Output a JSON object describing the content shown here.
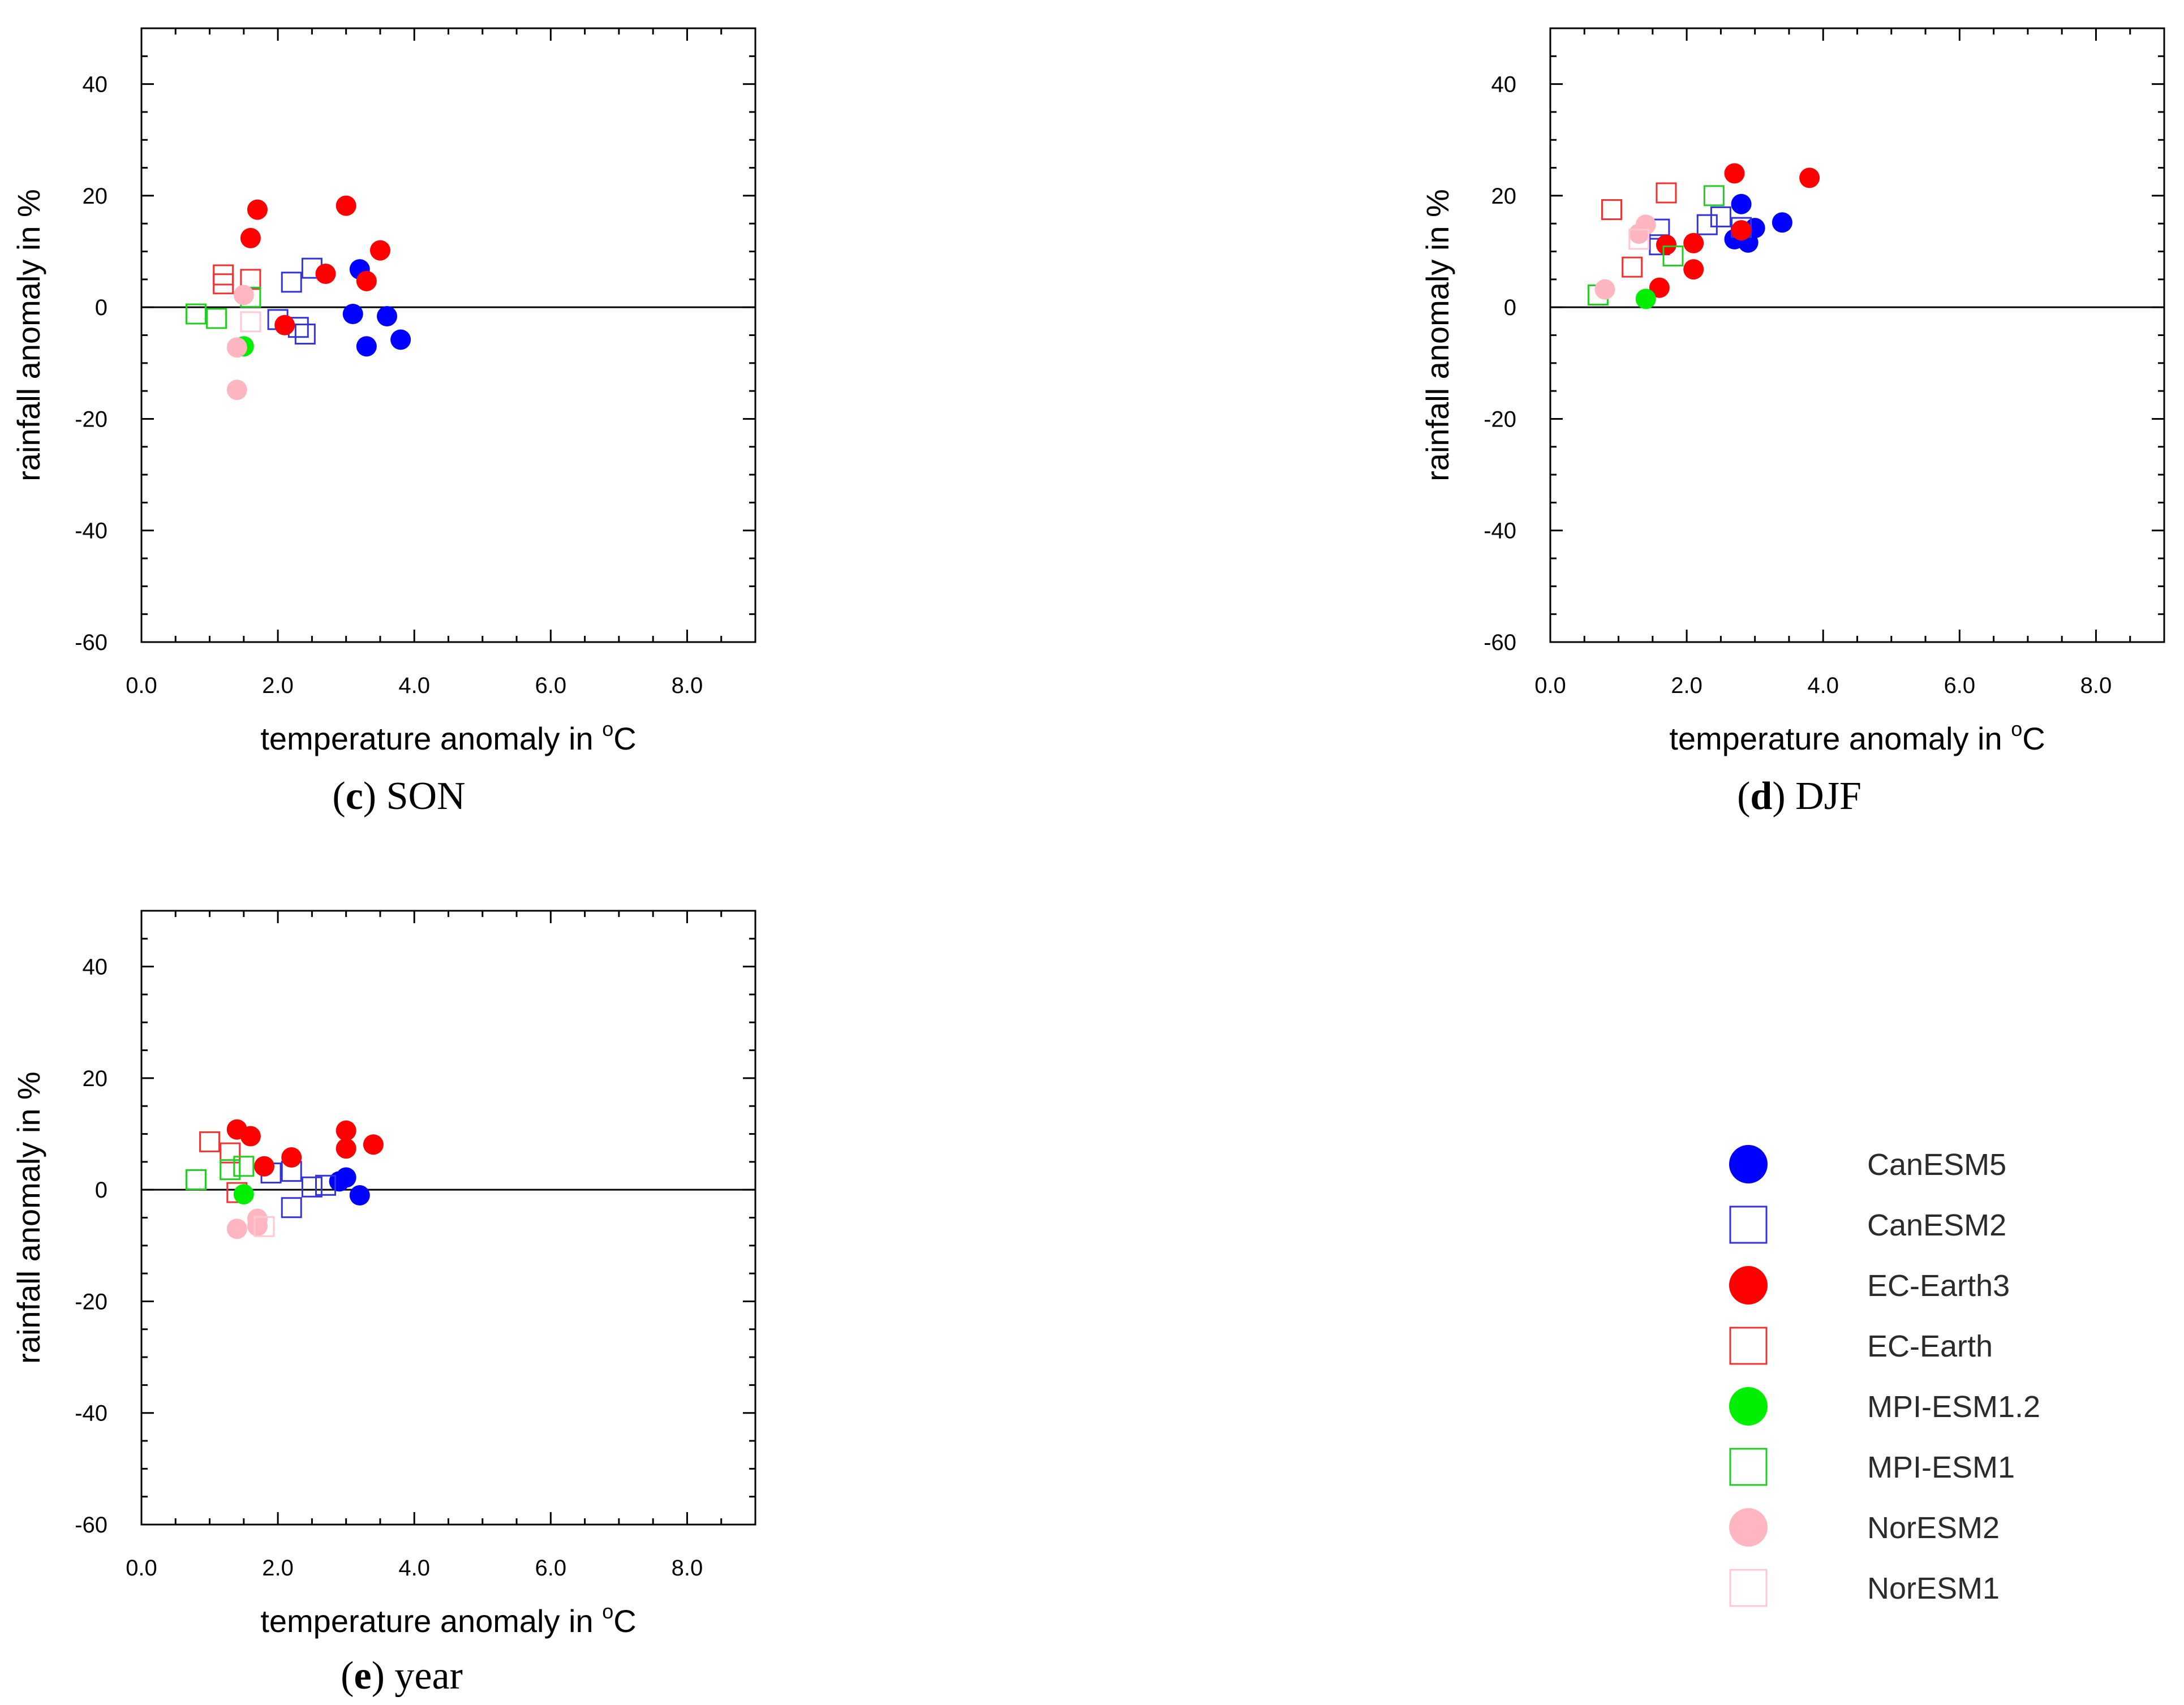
{
  "series_styles": [
    {
      "key": "CanESM5",
      "label": "CanESM5",
      "marker": "filled-circle",
      "color": "#0000ff"
    },
    {
      "key": "CanESM2",
      "label": "CanESM2",
      "marker": "open-square",
      "color": "#3333dd"
    },
    {
      "key": "EC-Earth3",
      "label": "EC-Earth3",
      "marker": "filled-circle",
      "color": "#ff0000"
    },
    {
      "key": "EC-Earth",
      "label": "EC-Earth",
      "marker": "open-square",
      "color": "#ee3333"
    },
    {
      "key": "MPI-ESM1.2",
      "label": "MPI-ESM1.2",
      "marker": "filled-circle",
      "color": "#00ee00"
    },
    {
      "key": "MPI-ESM1",
      "label": "MPI-ESM1",
      "marker": "open-square",
      "color": "#22cc22"
    },
    {
      "key": "NorESM2",
      "label": "NorESM2",
      "marker": "filled-circle",
      "color": "#ffb6c1"
    },
    {
      "key": "NorESM1",
      "label": "NorESM1",
      "marker": "open-square",
      "color": "#ffc8d0"
    }
  ],
  "chart_data": [
    {
      "type": "scatter",
      "panel": "c",
      "caption_letter": "c",
      "caption_text": "SON",
      "xlabel": "temperature anomaly in ",
      "xlabel_degree": "o",
      "xlabel_unit": "C",
      "ylabel": "rainfall anomaly in %",
      "xlim": [
        0,
        9
      ],
      "ylim": [
        -60,
        50
      ],
      "xticks": [
        0,
        2,
        4,
        6,
        8
      ],
      "xtick_labels": [
        "0.0",
        "2.0",
        "4.0",
        "6.0",
        "8.0"
      ],
      "yticks": [
        -60,
        -40,
        -20,
        0,
        20,
        40
      ],
      "ytick_labels": [
        "-60",
        "-40",
        "-20",
        "0",
        "20",
        "40"
      ],
      "zero_line": true,
      "series": [
        {
          "name": "CanESM5",
          "points": [
            [
              3.2,
              6.8
            ],
            [
              3.1,
              -1.2
            ],
            [
              3.6,
              -1.6
            ],
            [
              3.3,
              -7.0
            ],
            [
              3.8,
              -5.8
            ]
          ]
        },
        {
          "name": "CanESM2",
          "points": [
            [
              2.2,
              4.5
            ],
            [
              2.5,
              7.0
            ],
            [
              2.0,
              -2.2
            ],
            [
              2.3,
              -3.6
            ],
            [
              2.4,
              -4.8
            ]
          ]
        },
        {
          "name": "EC-Earth3",
          "points": [
            [
              1.7,
              17.5
            ],
            [
              1.6,
              12.4
            ],
            [
              3.0,
              18.2
            ],
            [
              3.5,
              10.2
            ],
            [
              2.7,
              6.0
            ],
            [
              3.3,
              4.7
            ],
            [
              2.1,
              -3.2
            ]
          ]
        },
        {
          "name": "EC-Earth",
          "points": [
            [
              1.2,
              5.8
            ],
            [
              1.2,
              4.2
            ],
            [
              1.6,
              5.0
            ]
          ]
        },
        {
          "name": "MPI-ESM1.2",
          "points": [
            [
              1.5,
              -7.0
            ]
          ]
        },
        {
          "name": "MPI-ESM1",
          "points": [
            [
              0.8,
              -1.2
            ],
            [
              1.1,
              -2.0
            ],
            [
              1.6,
              1.8
            ]
          ]
        },
        {
          "name": "NorESM2",
          "points": [
            [
              1.5,
              2.2
            ],
            [
              1.4,
              -7.2
            ],
            [
              1.4,
              -14.8
            ]
          ]
        },
        {
          "name": "NorESM1",
          "points": [
            [
              1.6,
              -2.6
            ]
          ]
        }
      ]
    },
    {
      "type": "scatter",
      "panel": "d",
      "caption_letter": "d",
      "caption_text": "DJF",
      "xlabel": "temperature anomaly in ",
      "xlabel_degree": "o",
      "xlabel_unit": "C",
      "ylabel": "rainfall anomaly in %",
      "xlim": [
        0,
        9
      ],
      "ylim": [
        -60,
        50
      ],
      "xticks": [
        0,
        2,
        4,
        6,
        8
      ],
      "xtick_labels": [
        "0.0",
        "2.0",
        "4.0",
        "6.0",
        "8.0"
      ],
      "yticks": [
        -60,
        -40,
        -20,
        0,
        20,
        40
      ],
      "ytick_labels": [
        "-60",
        "-40",
        "-20",
        "0",
        "20",
        "40"
      ],
      "zero_line": true,
      "series": [
        {
          "name": "CanESM5",
          "points": [
            [
              2.8,
              18.5
            ],
            [
              2.7,
              12.2
            ],
            [
              2.9,
              11.6
            ],
            [
              3.0,
              14.2
            ],
            [
              3.4,
              15.2
            ]
          ]
        },
        {
          "name": "CanESM2",
          "points": [
            [
              1.6,
              14.0
            ],
            [
              1.6,
              11.2
            ],
            [
              2.3,
              14.8
            ],
            [
              2.5,
              16.2
            ],
            [
              2.8,
              14.3
            ]
          ]
        },
        {
          "name": "EC-Earth3",
          "points": [
            [
              2.7,
              24.0
            ],
            [
              3.8,
              23.2
            ],
            [
              2.8,
              13.8
            ],
            [
              1.7,
              11.2
            ],
            [
              2.1,
              11.5
            ],
            [
              2.1,
              6.8
            ],
            [
              1.6,
              3.5
            ]
          ]
        },
        {
          "name": "EC-Earth",
          "points": [
            [
              0.9,
              17.5
            ],
            [
              1.7,
              20.5
            ],
            [
              1.2,
              7.2
            ]
          ]
        },
        {
          "name": "MPI-ESM1.2",
          "points": [
            [
              1.4,
              1.5
            ]
          ]
        },
        {
          "name": "MPI-ESM1",
          "points": [
            [
              2.4,
              20.0
            ],
            [
              1.8,
              9.2
            ],
            [
              0.7,
              2.2
            ]
          ]
        },
        {
          "name": "NorESM2",
          "points": [
            [
              1.4,
              14.8
            ],
            [
              1.3,
              13.2
            ],
            [
              0.8,
              3.2
            ]
          ]
        },
        {
          "name": "NorESM1",
          "points": [
            [
              1.3,
              12.2
            ]
          ]
        }
      ]
    },
    {
      "type": "scatter",
      "panel": "e",
      "caption_letter": "e",
      "caption_text": "year",
      "xlabel": "temperature anomaly in ",
      "xlabel_degree": "o",
      "xlabel_unit": "C",
      "ylabel": "rainfall anomaly in %",
      "xlim": [
        0,
        9
      ],
      "ylim": [
        -60,
        50
      ],
      "xticks": [
        0,
        2,
        4,
        6,
        8
      ],
      "xtick_labels": [
        "0.0",
        "2.0",
        "4.0",
        "6.0",
        "8.0"
      ],
      "yticks": [
        -60,
        -40,
        -20,
        0,
        20,
        40
      ],
      "ytick_labels": [
        "-60",
        "-40",
        "-20",
        "0",
        "20",
        "40"
      ],
      "zero_line": true,
      "series": [
        {
          "name": "CanESM5",
          "points": [
            [
              3.0,
              2.2
            ],
            [
              2.9,
              1.5
            ],
            [
              3.2,
              -1.0
            ]
          ]
        },
        {
          "name": "CanESM2",
          "points": [
            [
              1.9,
              3.0
            ],
            [
              2.2,
              3.3
            ],
            [
              2.5,
              0.5
            ],
            [
              2.7,
              0.8
            ],
            [
              2.2,
              -3.2
            ]
          ]
        },
        {
          "name": "EC-Earth3",
          "points": [
            [
              1.4,
              10.8
            ],
            [
              1.6,
              9.6
            ],
            [
              3.0,
              10.6
            ],
            [
              3.4,
              8.1
            ],
            [
              3.0,
              7.4
            ],
            [
              2.2,
              5.8
            ],
            [
              1.8,
              4.2
            ]
          ]
        },
        {
          "name": "EC-Earth",
          "points": [
            [
              1.0,
              8.6
            ],
            [
              1.3,
              6.6
            ],
            [
              1.4,
              -0.5
            ]
          ]
        },
        {
          "name": "MPI-ESM1.2",
          "points": [
            [
              1.5,
              -0.8
            ]
          ]
        },
        {
          "name": "MPI-ESM1",
          "points": [
            [
              0.8,
              1.8
            ],
            [
              1.3,
              3.6
            ],
            [
              1.5,
              4.2
            ]
          ]
        },
        {
          "name": "NorESM2",
          "points": [
            [
              1.4,
              -7.0
            ],
            [
              1.7,
              -6.5
            ],
            [
              1.7,
              -5.2
            ]
          ]
        },
        {
          "name": "NorESM1",
          "points": [
            [
              1.8,
              -6.6
            ]
          ]
        }
      ]
    }
  ]
}
